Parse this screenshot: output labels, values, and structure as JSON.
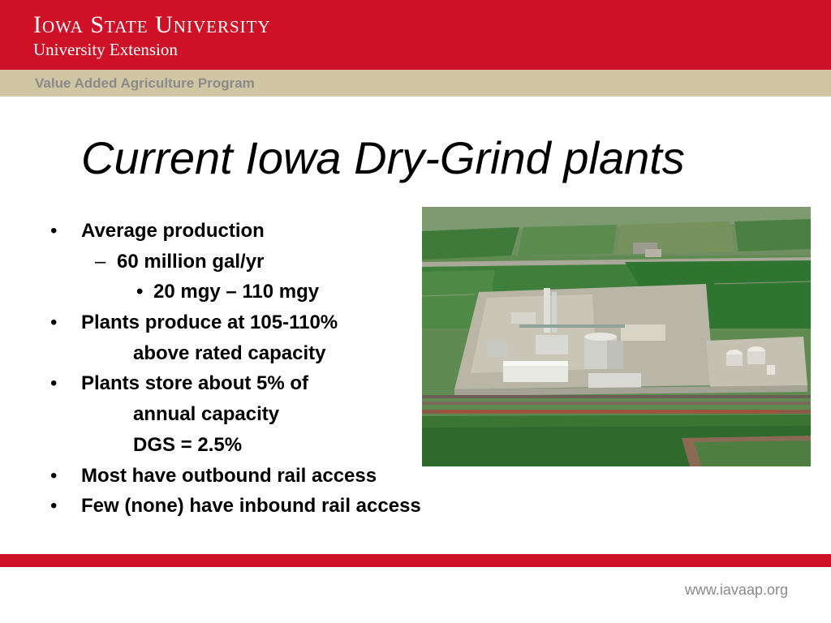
{
  "header": {
    "university": "Iowa State University",
    "extension": "University Extension",
    "program": "Value Added Agriculture Program"
  },
  "title": "Current Iowa Dry-Grind plants",
  "bullets": [
    {
      "level": 1,
      "marker": "•",
      "text": "Average production"
    },
    {
      "level": 2,
      "marker": "–",
      "text": "60 million gal/yr"
    },
    {
      "level": 3,
      "marker": "•",
      "text": "20 mgy – 110 mgy"
    },
    {
      "level": 1,
      "marker": "•",
      "text": "Plants produce at 105-110%"
    },
    {
      "level": "cont",
      "marker": "",
      "text": "above rated capacity"
    },
    {
      "level": 1,
      "marker": "•",
      "text": "Plants store about 5% of"
    },
    {
      "level": "cont",
      "marker": "",
      "text": "annual capacity"
    },
    {
      "level": "cont",
      "marker": "",
      "text": "DGS = 2.5%"
    },
    {
      "level": 1,
      "marker": "•",
      "text": "Most have outbound rail access"
    },
    {
      "level": 1,
      "marker": "•",
      "text": "Few (none) have inbound rail access"
    }
  ],
  "photo": {
    "subject": "aerial view of ethanol dry-grind plant with rail line and farm fields"
  },
  "footer": {
    "url": "www.iavaap.org"
  },
  "colors": {
    "brand_red": "#ce1126",
    "program_band": "#d1c6a3",
    "gray_text": "#8a8a8a"
  }
}
